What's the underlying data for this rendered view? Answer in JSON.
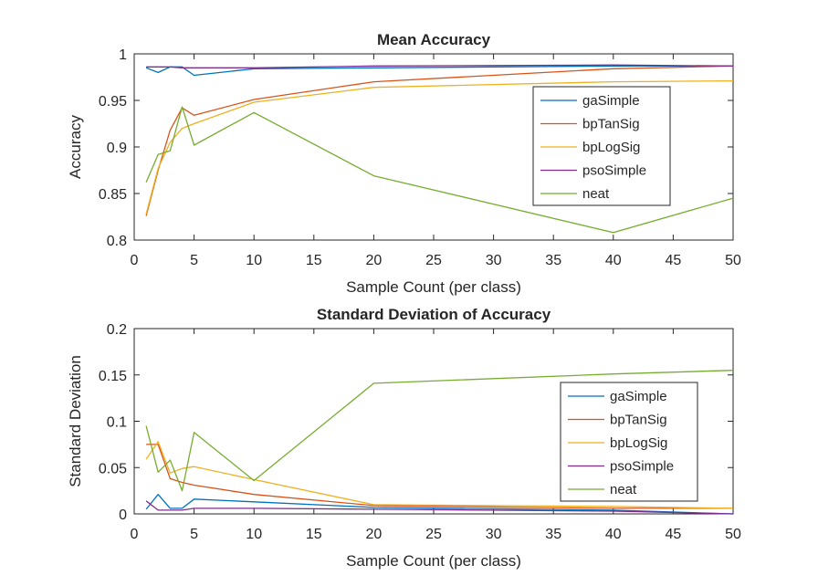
{
  "chart_data": [
    {
      "type": "line",
      "title": "Mean Accuracy",
      "xlabel": "Sample Count (per class)",
      "ylabel": "Accuracy",
      "xlim": [
        0,
        50
      ],
      "ylim": [
        0.8,
        1
      ],
      "xticks": [
        0,
        5,
        10,
        15,
        20,
        25,
        30,
        35,
        40,
        45,
        50
      ],
      "yticks": [
        0.8,
        0.85,
        0.9,
        0.95,
        1
      ],
      "xtick_labels": [
        "0",
        "5",
        "10",
        "15",
        "20",
        "25",
        "30",
        "35",
        "40",
        "45",
        "50"
      ],
      "ytick_labels": [
        "0.8",
        "0.85",
        "0.9",
        "0.95",
        "1"
      ],
      "grid": false,
      "legend_position": "right",
      "series": [
        {
          "name": "gaSimple",
          "color": "#0072BD",
          "x": [
            1,
            2,
            3,
            4,
            5,
            10,
            20,
            40,
            50
          ],
          "y": [
            0.985,
            0.98,
            0.986,
            0.986,
            0.977,
            0.984,
            0.985,
            0.987,
            0.987
          ]
        },
        {
          "name": "bpTanSig",
          "color": "#D95319",
          "x": [
            1,
            2,
            3,
            4,
            5,
            10,
            20,
            40,
            50
          ],
          "y": [
            0.826,
            0.875,
            0.918,
            0.942,
            0.934,
            0.951,
            0.97,
            0.984,
            0.987
          ]
        },
        {
          "name": "bpLogSig",
          "color": "#EDB120",
          "x": [
            1,
            2,
            3,
            4,
            5,
            10,
            20,
            40,
            50
          ],
          "y": [
            0.828,
            0.877,
            0.905,
            0.92,
            0.925,
            0.948,
            0.964,
            0.97,
            0.971
          ]
        },
        {
          "name": "psoSimple",
          "color": "#7E2F8E",
          "x": [
            1,
            2,
            3,
            4,
            5,
            10,
            20,
            40,
            50
          ],
          "y": [
            0.986,
            0.986,
            0.986,
            0.985,
            0.985,
            0.985,
            0.987,
            0.988,
            0.987
          ]
        },
        {
          "name": "neat",
          "color": "#77AC30",
          "x": [
            1,
            2,
            3,
            4,
            5,
            10,
            20,
            40,
            50
          ],
          "y": [
            0.862,
            0.892,
            0.896,
            0.943,
            0.902,
            0.937,
            0.869,
            0.808,
            0.845
          ]
        }
      ]
    },
    {
      "type": "line",
      "title": "Standard Deviation of Accuracy",
      "xlabel": "Sample Count (per class)",
      "ylabel": "Standard Deviation",
      "xlim": [
        0,
        50
      ],
      "ylim": [
        0,
        0.2
      ],
      "xticks": [
        0,
        5,
        10,
        15,
        20,
        25,
        30,
        35,
        40,
        45,
        50
      ],
      "yticks": [
        0,
        0.05,
        0.1,
        0.15,
        0.2
      ],
      "xtick_labels": [
        "0",
        "5",
        "10",
        "15",
        "20",
        "25",
        "30",
        "35",
        "40",
        "45",
        "50"
      ],
      "ytick_labels": [
        "0",
        "0.05",
        "0.1",
        "0.15",
        "0.2"
      ],
      "grid": false,
      "legend_position": "right",
      "series": [
        {
          "name": "gaSimple",
          "color": "#0072BD",
          "x": [
            1,
            2,
            3,
            4,
            5,
            10,
            20,
            40,
            50
          ],
          "y": [
            0.005,
            0.021,
            0.006,
            0.006,
            0.016,
            0.013,
            0.007,
            0.004,
            0.0
          ]
        },
        {
          "name": "bpTanSig",
          "color": "#D95319",
          "x": [
            1,
            2,
            3,
            4,
            5,
            10,
            20,
            40,
            50
          ],
          "y": [
            0.075,
            0.075,
            0.038,
            0.034,
            0.031,
            0.021,
            0.009,
            0.006,
            0.006
          ]
        },
        {
          "name": "bpLogSig",
          "color": "#EDB120",
          "x": [
            1,
            2,
            3,
            4,
            5,
            10,
            20,
            40,
            50
          ],
          "y": [
            0.059,
            0.078,
            0.044,
            0.049,
            0.051,
            0.037,
            0.01,
            0.008,
            0.006
          ]
        },
        {
          "name": "psoSimple",
          "color": "#7E2F8E",
          "x": [
            1,
            2,
            3,
            4,
            5,
            10,
            20,
            40,
            50
          ],
          "y": [
            0.014,
            0.004,
            0.004,
            0.004,
            0.006,
            0.006,
            0.005,
            0.003,
            0.0
          ]
        },
        {
          "name": "neat",
          "color": "#77AC30",
          "x": [
            1,
            2,
            3,
            4,
            5,
            10,
            20,
            40,
            50
          ],
          "y": [
            0.095,
            0.045,
            0.058,
            0.025,
            0.088,
            0.036,
            0.141,
            0.151,
            0.155
          ]
        }
      ]
    }
  ]
}
